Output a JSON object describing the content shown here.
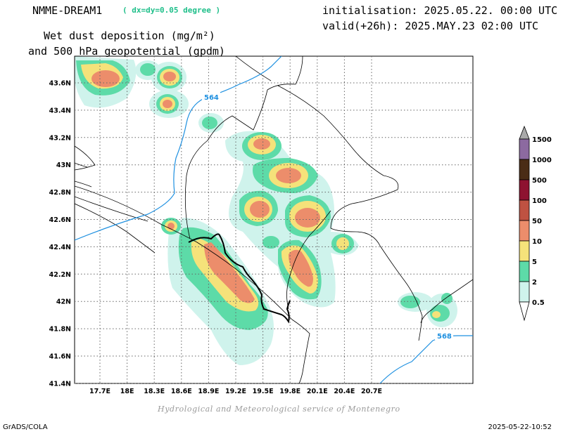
{
  "header": {
    "model": "NMME-DREAM1",
    "grid": "( dx=dy=0.05 degree )",
    "variable_line1": "Wet dust deposition (mg/m²)",
    "variable_line2": "and 500 hPa geopotential (gpdm)",
    "initialisation": "initialisation: 2025.05.22. 00:00 UTC",
    "valid": "valid(+26h): 2025.MAY.23 02:00 UTC"
  },
  "axes": {
    "x_ticks": [
      "17.7E",
      "18E",
      "18.3E",
      "18.6E",
      "18.9E",
      "19.2E",
      "19.5E",
      "19.8E",
      "20.1E",
      "20.4E",
      "20.7E"
    ],
    "y_ticks": [
      "43.6N",
      "43.4N",
      "43.2N",
      "43N",
      "42.8N",
      "42.6N",
      "42.4N",
      "42.2N",
      "42N",
      "41.8N",
      "41.6N",
      "41.4N"
    ]
  },
  "contours": [
    {
      "label": "564"
    },
    {
      "label": "568"
    }
  ],
  "colorbar": {
    "levels": [
      "0.5",
      "2",
      "5",
      "10",
      "50",
      "100",
      "500",
      "1000",
      "1500"
    ],
    "colors": [
      "#cff3ec",
      "#5ddba8",
      "#f5e27a",
      "#ec8d6b",
      "#bf5242",
      "#8e1230",
      "#4a2c16",
      "#8c6aa0",
      "#a9a9a9"
    ]
  },
  "footer": {
    "credit": "Hydrological and Meteorological service of Montenegro",
    "software": "GrADS/COLA",
    "timestamp": "2025-05-22-10:52"
  }
}
